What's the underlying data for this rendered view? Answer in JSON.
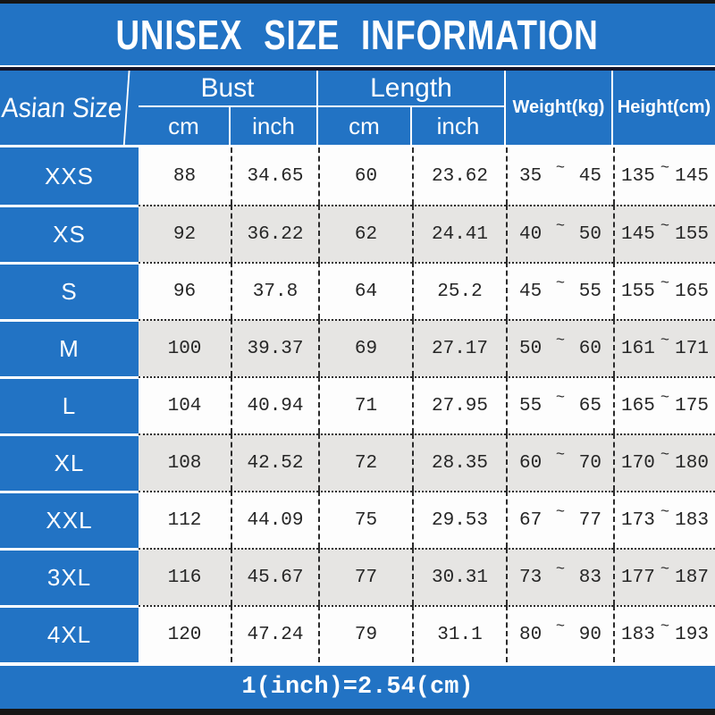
{
  "title": "UNISEX SIZE INFORMATION",
  "table": {
    "col_groups": {
      "asian_size": "Asian Size",
      "bust": "Bust",
      "length": "Length",
      "weight": "Weight(kg)",
      "height": "Height(cm)"
    },
    "sub_headers": {
      "cm": "cm",
      "inch": "inch"
    },
    "range_separator": "~",
    "rows": [
      {
        "size": "XXS",
        "bust_cm": "88",
        "bust_inch": "34.65",
        "length_cm": "60",
        "length_inch": "23.62",
        "weight_min": "35",
        "weight_max": "45",
        "height_min": "135",
        "height_max": "145"
      },
      {
        "size": "XS",
        "bust_cm": "92",
        "bust_inch": "36.22",
        "length_cm": "62",
        "length_inch": "24.41",
        "weight_min": "40",
        "weight_max": "50",
        "height_min": "145",
        "height_max": "155"
      },
      {
        "size": "S",
        "bust_cm": "96",
        "bust_inch": "37.8",
        "length_cm": "64",
        "length_inch": "25.2",
        "weight_min": "45",
        "weight_max": "55",
        "height_min": "155",
        "height_max": "165"
      },
      {
        "size": "M",
        "bust_cm": "100",
        "bust_inch": "39.37",
        "length_cm": "69",
        "length_inch": "27.17",
        "weight_min": "50",
        "weight_max": "60",
        "height_min": "161",
        "height_max": "171"
      },
      {
        "size": "L",
        "bust_cm": "104",
        "bust_inch": "40.94",
        "length_cm": "71",
        "length_inch": "27.95",
        "weight_min": "55",
        "weight_max": "65",
        "height_min": "165",
        "height_max": "175"
      },
      {
        "size": "XL",
        "bust_cm": "108",
        "bust_inch": "42.52",
        "length_cm": "72",
        "length_inch": "28.35",
        "weight_min": "60",
        "weight_max": "70",
        "height_min": "170",
        "height_max": "180"
      },
      {
        "size": "XXL",
        "bust_cm": "112",
        "bust_inch": "44.09",
        "length_cm": "75",
        "length_inch": "29.53",
        "weight_min": "67",
        "weight_max": "77",
        "height_min": "173",
        "height_max": "183"
      },
      {
        "size": "3XL",
        "bust_cm": "116",
        "bust_inch": "45.67",
        "length_cm": "77",
        "length_inch": "30.31",
        "weight_min": "73",
        "weight_max": "83",
        "height_min": "177",
        "height_max": "187"
      },
      {
        "size": "4XL",
        "bust_cm": "120",
        "bust_inch": "47.24",
        "length_cm": "79",
        "length_inch": "31.1",
        "weight_min": "80",
        "weight_max": "90",
        "height_min": "183",
        "height_max": "193"
      }
    ]
  },
  "footer": {
    "note": "1(inch)=2.54(cm)"
  },
  "colors": {
    "accent_blue": "#2273c4",
    "row_alt_gray": "#e6e5e3",
    "bar_black": "#161616",
    "title_separator_dark": "#15152b",
    "text_dark": "#262626",
    "text_white": "#ffffff"
  },
  "chart_data": {
    "type": "table",
    "title": "UNISEX SIZE INFORMATION",
    "columns": [
      "Asian Size",
      "Bust cm",
      "Bust inch",
      "Length cm",
      "Length inch",
      "Weight(kg)",
      "Height(cm)"
    ],
    "rows": [
      [
        "XXS",
        88,
        34.65,
        60,
        23.62,
        "35~45",
        "135~145"
      ],
      [
        "XS",
        92,
        36.22,
        62,
        24.41,
        "40~50",
        "145~155"
      ],
      [
        "S",
        96,
        37.8,
        64,
        25.2,
        "45~55",
        "155~165"
      ],
      [
        "M",
        100,
        39.37,
        69,
        27.17,
        "50~60",
        "161~171"
      ],
      [
        "L",
        104,
        40.94,
        71,
        27.95,
        "55~65",
        "165~175"
      ],
      [
        "XL",
        108,
        42.52,
        72,
        28.35,
        "60~70",
        "170~180"
      ],
      [
        "XXL",
        112,
        44.09,
        75,
        29.53,
        "67~77",
        "173~183"
      ],
      [
        "3XL",
        116,
        45.67,
        77,
        30.31,
        "73~83",
        "177~187"
      ],
      [
        "4XL",
        120,
        47.24,
        79,
        31.1,
        "80~90",
        "183~193"
      ]
    ],
    "footnote": "1(inch)=2.54(cm)"
  }
}
